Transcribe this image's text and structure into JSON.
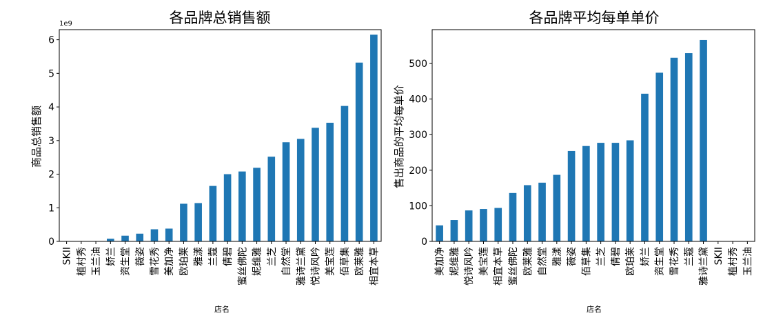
{
  "colors": {
    "bar": "#1f77b4",
    "axis": "#000000",
    "background": "#ffffff"
  },
  "chart_data": [
    {
      "type": "bar",
      "title": "各品牌总销售额",
      "xlabel": "店名",
      "ylabel": "商品总销售额",
      "offset_text": "1e9",
      "ylim": [
        0,
        6.3
      ],
      "yticks": [
        0,
        1,
        2,
        3,
        4,
        5,
        6
      ],
      "grid": false,
      "categories": [
        "SKII",
        "植村秀",
        "玉兰油",
        "娇兰",
        "资生堂",
        "薇姿",
        "雪花秀",
        "美加净",
        "欧珀莱",
        "雅漾",
        "兰蔻",
        "倩碧",
        "蜜丝佛陀",
        "妮维雅",
        "兰芝",
        "自然堂",
        "雅诗兰黛",
        "悦诗风吟",
        "美宝莲",
        "佰草集",
        "欧莱雅",
        "相宜本草"
      ],
      "values": [
        0,
        0,
        0,
        0.08,
        0.17,
        0.23,
        0.36,
        0.38,
        1.12,
        1.14,
        1.65,
        2.0,
        2.08,
        2.19,
        2.52,
        2.95,
        3.05,
        3.38,
        3.53,
        4.03,
        5.32,
        6.15
      ]
    },
    {
      "type": "bar",
      "title": "各品牌平均每单单价",
      "xlabel": "店名",
      "ylabel": "售出商品的平均每单价",
      "ylim": [
        0,
        595
      ],
      "yticks": [
        0,
        100,
        200,
        300,
        400,
        500
      ],
      "grid": false,
      "categories": [
        "美加净",
        "妮维雅",
        "悦诗风吟",
        "美宝莲",
        "相宜本草",
        "蜜丝佛陀",
        "欧莱雅",
        "自然堂",
        "雅漾",
        "薇姿",
        "佰草集",
        "兰芝",
        "倩碧",
        "欧珀莱",
        "娇兰",
        "资生堂",
        "雪花秀",
        "兰蔻",
        "雅诗兰黛",
        "SKII",
        "植村秀",
        "玉兰油"
      ],
      "values": [
        45,
        60,
        87,
        91,
        94,
        136,
        158,
        165,
        187,
        254,
        268,
        277,
        277,
        284,
        415,
        474,
        516,
        529,
        566,
        0,
        0,
        0
      ]
    }
  ]
}
